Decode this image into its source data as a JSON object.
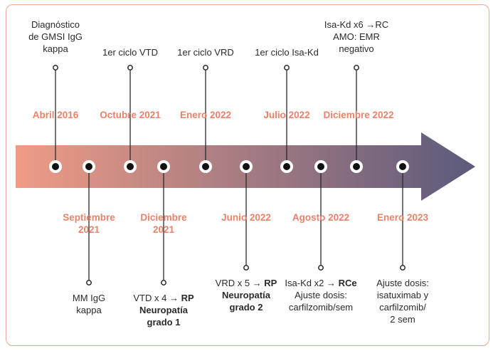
{
  "colors": {
    "accent_date": "#e8826b",
    "arrow_start": "#ef9c86",
    "arrow_end": "#5b5a7c",
    "border": "#e8a894",
    "text": "#2a2a2a"
  },
  "top_items": [
    {
      "date": "Abril 2016",
      "event": [
        "Diagnóstico",
        "de GMSI IgG",
        "kappa"
      ]
    },
    {
      "date": "Octubre 2021",
      "event": [
        "1er ciclo VTD"
      ]
    },
    {
      "date": "Enero 2022",
      "event": [
        "1er ciclo VRD"
      ]
    },
    {
      "date": "Julio 2022",
      "event": [
        "1er ciclo Isa-Kd"
      ]
    },
    {
      "date": "Diciembre 2022",
      "event": [
        "Isa-Kd x6 →RC",
        "AMO: EMR",
        "negativo"
      ]
    }
  ],
  "bottom_items": [
    {
      "date": [
        "Septiembre",
        "2021"
      ],
      "event": [
        "MM IgG",
        "kappa"
      ]
    },
    {
      "date": [
        "Diciembre",
        "2021"
      ],
      "event": [
        "VTD x 4 → ",
        "RP",
        "Neuropatía",
        "grado 1"
      ]
    },
    {
      "date": [
        "Junio 2022"
      ],
      "event": [
        "VRD x 5 → ",
        "RP",
        "Neuropatía",
        "grado 2"
      ]
    },
    {
      "date": [
        "Agosto 2022"
      ],
      "event": [
        "Isa-Kd x2 → ",
        "RCe",
        "Ajuste dosis:",
        "carfilzomib/sem"
      ]
    },
    {
      "date": [
        "Enero 2023"
      ],
      "event": [
        "Ajuste dosis:",
        "isatuximab y",
        "carfilzomib/",
        "2 sem"
      ]
    }
  ]
}
